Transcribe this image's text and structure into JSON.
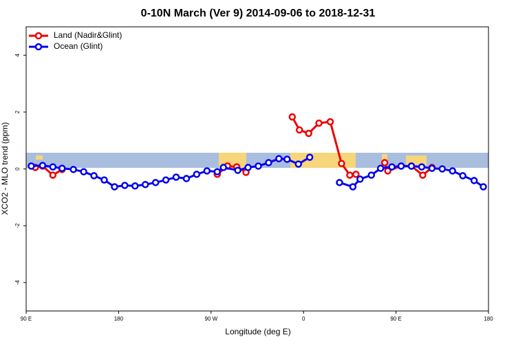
{
  "chart_data": {
    "type": "line",
    "title": "0-10N March (Ver 9)   2014-09-06 to 2018-12-31",
    "xlabel": "Longitude (deg E)",
    "ylabel": "XCO2 - MLO trend (ppm)",
    "xlim": [
      90,
      540
    ],
    "ylim": [
      -5,
      5
    ],
    "xticks": [
      {
        "value": 90,
        "label": "90 E"
      },
      180,
      {
        "value": 270,
        "label": "90 W"
      },
      {
        "value": 360,
        "label": "0"
      },
      {
        "value": 450,
        "label": "90 E"
      },
      {
        "value": 540,
        "label": "180"
      }
    ],
    "yticks": [
      -4,
      -2,
      0,
      2,
      4
    ],
    "legend": "top-left",
    "series": [
      {
        "name": "Land (Nadir&Glint)",
        "color": "#ee0000",
        "x": [
          99,
          106,
          116,
          125,
          null,
          276,
          286,
          295,
          304,
          null,
          349,
          356,
          365,
          375,
          386,
          397,
          405,
          411,
          null,
          439,
          442,
          455,
          465,
          476,
          485
        ],
        "values": [
          0.05,
          0.1,
          -0.22,
          -0.02,
          null,
          -0.19,
          0.1,
          0.07,
          -0.12,
          null,
          1.83,
          1.37,
          1.25,
          1.61,
          1.66,
          0.19,
          -0.22,
          -0.19,
          null,
          0.22,
          -0.07,
          0.1,
          0.1,
          -0.22,
          0.05
        ]
      },
      {
        "name": "Ocean (Glint)",
        "color": "#0000ee",
        "x": [
          95,
          106,
          116,
          125,
          136,
          146,
          156,
          166,
          176,
          186,
          196,
          206,
          216,
          226,
          236,
          246,
          256,
          266,
          276,
          282,
          296,
          306,
          316,
          326,
          336,
          344,
          355,
          366,
          null,
          395,
          408,
          415,
          426,
          435,
          446,
          455,
          465,
          475,
          485,
          495,
          505,
          515,
          526,
          535
        ],
        "values": [
          0.1,
          0.12,
          0.07,
          0.02,
          -0.02,
          -0.1,
          -0.24,
          -0.39,
          -0.63,
          -0.58,
          -0.6,
          -0.55,
          -0.48,
          -0.39,
          -0.29,
          -0.34,
          -0.19,
          -0.07,
          -0.1,
          0.05,
          -0.05,
          0.05,
          0.1,
          0.22,
          0.36,
          0.34,
          0.17,
          0.41,
          null,
          -0.48,
          -0.63,
          -0.36,
          -0.22,
          0.02,
          0.07,
          0.1,
          0.1,
          0.07,
          0.02,
          0,
          -0.07,
          -0.24,
          -0.41,
          -0.63
        ]
      }
    ]
  }
}
